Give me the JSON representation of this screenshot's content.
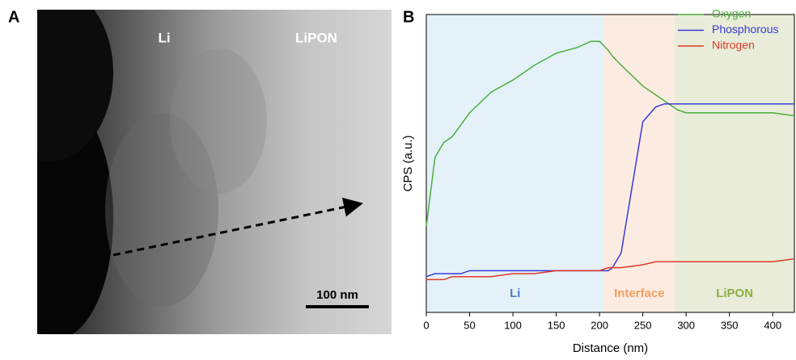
{
  "panel_a": {
    "panel_label": "A",
    "left_label": "Li",
    "right_label": "LiPON",
    "scale_bar": "100 nm"
  },
  "chart_data": {
    "type": "line",
    "panel_label": "B",
    "x_label": "Distance (nm)",
    "y_label": "CPS (a.u.)",
    "x": [
      0,
      10,
      20,
      30,
      40,
      50,
      75,
      100,
      125,
      150,
      175,
      190,
      200,
      210,
      215,
      225,
      250,
      265,
      275,
      290,
      300,
      325,
      350,
      375,
      400,
      425
    ],
    "series": [
      {
        "name": "Oxygen",
        "color": "#4caf3c",
        "values": [
          29,
          52,
          57,
          59,
          63,
          67,
          74,
          78,
          83,
          87,
          89,
          91,
          91,
          88,
          86,
          83,
          76,
          73,
          71,
          68,
          67,
          67,
          67,
          67,
          67,
          66
        ]
      },
      {
        "name": "Phosphorous",
        "color": "#3a3ad8",
        "values": [
          12,
          13,
          13,
          13,
          13,
          14,
          14,
          14,
          14,
          14,
          14,
          14,
          14,
          14,
          15,
          20,
          64,
          69,
          70,
          70,
          70,
          70,
          70,
          70,
          70,
          70
        ]
      },
      {
        "name": "Nitrogen",
        "color": "#e03a2a",
        "values": [
          11,
          11,
          11,
          12,
          12,
          12,
          12,
          13,
          13,
          14,
          14,
          14,
          14,
          15,
          15,
          15,
          16,
          17,
          17,
          17,
          17,
          17,
          17,
          17,
          17,
          18
        ]
      }
    ],
    "regions": [
      {
        "label": "Li",
        "start": 0,
        "end": 205,
        "color": "#e4f1f9",
        "label_color": "#4a7fc4"
      },
      {
        "label": "Interface",
        "start": 205,
        "end": 287,
        "color": "#fcebe1",
        "label_color": "#f0a060"
      },
      {
        "label": "LiPON",
        "start": 287,
        "end": 425,
        "color": "#e8ecd8",
        "label_color": "#8db040"
      }
    ],
    "xlim": [
      0,
      425
    ],
    "ylim": [
      0,
      100
    ],
    "xticks": [
      0,
      50,
      100,
      150,
      200,
      250,
      300,
      350,
      400
    ],
    "legend": "upper right"
  }
}
